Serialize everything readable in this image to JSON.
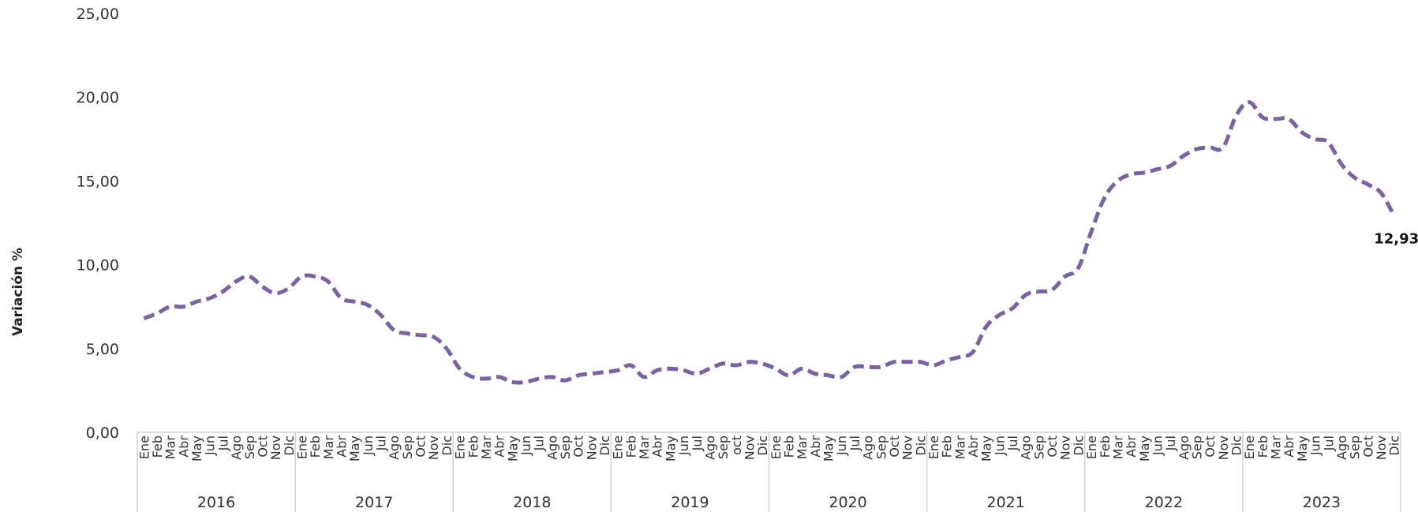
{
  "chart_data": {
    "type": "line",
    "title": "",
    "xlabel": "",
    "ylabel": "Variación %",
    "ylim": [
      0,
      25
    ],
    "yticks": [
      "0,00",
      "5,00",
      "10,00",
      "15,00",
      "20,00",
      "25,00"
    ],
    "grid": false,
    "line_style": "dashed",
    "colors": {
      "series": "#7b62a3",
      "axis": "#d0d0d0",
      "text": "#333333"
    },
    "years": [
      "2016",
      "2017",
      "2018",
      "2019",
      "2020",
      "2021",
      "2022",
      "2023"
    ],
    "month_labels": [
      [
        "Ene",
        "Feb",
        "Mar",
        "Abr",
        "May",
        "Jun",
        "Jul",
        "Ago",
        "Sep",
        "Oct",
        "Nov",
        "Dic"
      ],
      [
        "Ene",
        "Feb",
        "Mar",
        "Abr",
        "May",
        "Jun",
        "Jul",
        "Ago",
        "Sep",
        "Oct",
        "Nov",
        "Dic"
      ],
      [
        "Ene",
        "Feb",
        "Mar",
        "Abr",
        "May",
        "Jun",
        "Jul",
        "Ago",
        "Sep",
        "Oct",
        "Nov",
        "Dic"
      ],
      [
        "Ene",
        "Feb",
        "Mar",
        "Abr",
        "May",
        "Jun",
        "Jul",
        "Ago",
        "Sep",
        "oct",
        "Nov",
        "Dic"
      ],
      [
        "Ene",
        "Feb",
        "Mar",
        "Abr",
        "May",
        "Jun",
        "Jul",
        "Ago",
        "Sep",
        "Oct",
        "Nov",
        "Dic"
      ],
      [
        "Ene",
        "Feb",
        "Mar",
        "Abr",
        "May",
        "Jun",
        "Jul",
        "Ago",
        "Sep",
        "Oct",
        "Nov",
        "Dic"
      ],
      [
        "Ene",
        "Feb",
        "Mar",
        "Abr",
        "May",
        "Jun",
        "Jul",
        "Ago",
        "Sep",
        "Oct",
        "Nov",
        "Dic"
      ],
      [
        "Ene",
        "Feb",
        "Mar",
        "Abr",
        "May",
        "Jun",
        "Jul",
        "Ago",
        "Sep",
        "Oct",
        "Nov",
        "Dic"
      ]
    ],
    "series": [
      {
        "values": [
          6.8,
          7.1,
          7.5,
          7.5,
          7.8,
          8.0,
          8.4,
          9.0,
          9.3,
          8.7,
          8.3,
          8.6,
          9.3,
          9.3,
          9.0,
          8.0,
          7.8,
          7.6,
          7.0,
          6.1,
          5.9,
          5.8,
          5.7,
          5.0,
          3.8,
          3.3,
          3.2,
          3.3,
          3.0,
          3.0,
          3.2,
          3.3,
          3.1,
          3.4,
          3.5,
          3.6,
          3.7,
          4.0,
          3.3,
          3.7,
          3.8,
          3.7,
          3.5,
          3.8,
          4.1,
          4.0,
          4.2,
          4.1,
          3.8,
          3.4,
          3.8,
          3.5,
          3.4,
          3.3,
          3.9,
          3.9,
          3.9,
          4.2,
          4.2,
          4.2,
          4.0,
          4.3,
          4.5,
          4.8,
          6.3,
          7.0,
          7.4,
          8.2,
          8.4,
          8.5,
          9.3,
          9.8,
          12.0,
          14.0,
          15.0,
          15.4,
          15.5,
          15.7,
          15.9,
          16.5,
          16.9,
          17.0,
          17.0,
          18.9,
          19.7,
          18.8,
          18.7,
          18.7,
          17.9,
          17.5,
          17.3,
          16.0,
          15.2,
          14.8,
          14.3,
          12.93
        ]
      }
    ],
    "end_label": "12,93"
  }
}
